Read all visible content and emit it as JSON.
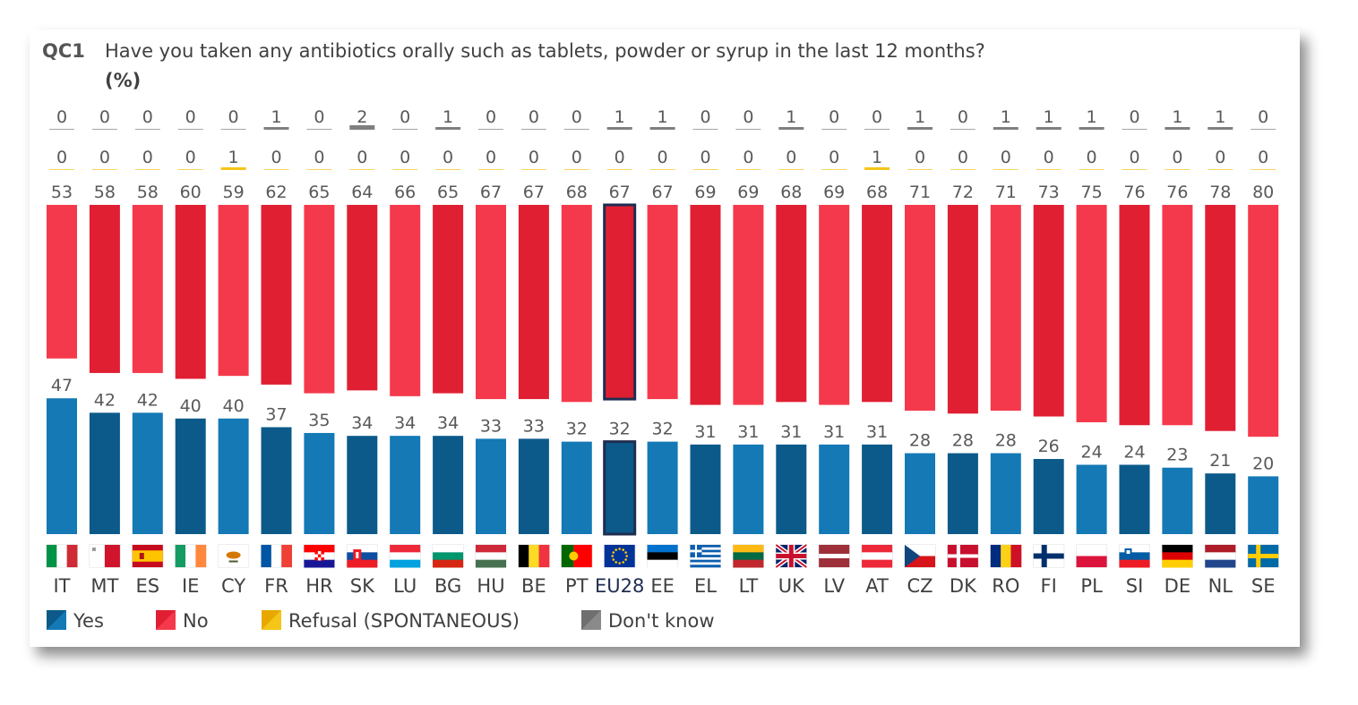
{
  "chart_data": {
    "type": "bar",
    "question_code": "QC1",
    "title": "Have you taken any antibiotics orally such as tablets, powder or syrup in the last 12 months?",
    "unit": "(%)",
    "categories": [
      "IT",
      "MT",
      "ES",
      "IE",
      "CY",
      "FR",
      "HR",
      "SK",
      "LU",
      "BG",
      "HU",
      "BE",
      "PT",
      "EU28",
      "EE",
      "EL",
      "LT",
      "UK",
      "LV",
      "AT",
      "CZ",
      "DK",
      "RO",
      "FI",
      "PL",
      "SI",
      "DE",
      "NL",
      "SE"
    ],
    "highlight": "EU28",
    "series": [
      {
        "name": "Yes",
        "color": "#0e6aa0",
        "values": [
          47,
          42,
          42,
          40,
          40,
          37,
          35,
          34,
          34,
          34,
          33,
          33,
          32,
          32,
          32,
          31,
          31,
          31,
          31,
          31,
          28,
          28,
          28,
          26,
          24,
          24,
          23,
          21,
          20
        ]
      },
      {
        "name": "No",
        "color": "#e41e33",
        "values": [
          53,
          58,
          58,
          60,
          59,
          62,
          65,
          64,
          66,
          65,
          67,
          67,
          68,
          67,
          67,
          69,
          69,
          68,
          69,
          68,
          71,
          72,
          71,
          73,
          75,
          76,
          76,
          78,
          80
        ]
      },
      {
        "name": "Refusal (SPONTANEOUS)",
        "color": "#f5c518",
        "values": [
          0,
          0,
          0,
          0,
          1,
          0,
          0,
          0,
          0,
          0,
          0,
          0,
          0,
          0,
          0,
          0,
          0,
          0,
          0,
          1,
          0,
          0,
          0,
          0,
          0,
          0,
          0,
          0,
          0
        ]
      },
      {
        "name": "Don't know",
        "color": "#7f7f7f",
        "values": [
          0,
          0,
          0,
          0,
          0,
          1,
          0,
          2,
          0,
          1,
          0,
          0,
          0,
          1,
          1,
          0,
          0,
          1,
          0,
          0,
          1,
          0,
          1,
          1,
          1,
          0,
          1,
          1,
          0
        ]
      }
    ],
    "colors": {
      "yes_dark": "#0b5a8a",
      "yes_light": "#1479b5",
      "no_dark": "#e01f33",
      "no_light": "#f5394c",
      "highlight_border": "#1f2d50"
    },
    "flags": [
      "flag-italy",
      "flag-malta",
      "flag-spain",
      "flag-ireland",
      "flag-cyprus",
      "flag-france",
      "flag-croatia",
      "flag-slovakia",
      "flag-luxembourg",
      "flag-bulgaria",
      "flag-hungary",
      "flag-belgium",
      "flag-portugal",
      "flag-eu",
      "flag-estonia",
      "flag-greece",
      "flag-lithuania",
      "flag-uk",
      "flag-latvia",
      "flag-austria",
      "flag-czechia",
      "flag-denmark",
      "flag-romania",
      "flag-finland",
      "flag-poland",
      "flag-slovenia",
      "flag-germany",
      "flag-netherlands",
      "flag-sweden"
    ],
    "legend_position": "bottom-left"
  }
}
